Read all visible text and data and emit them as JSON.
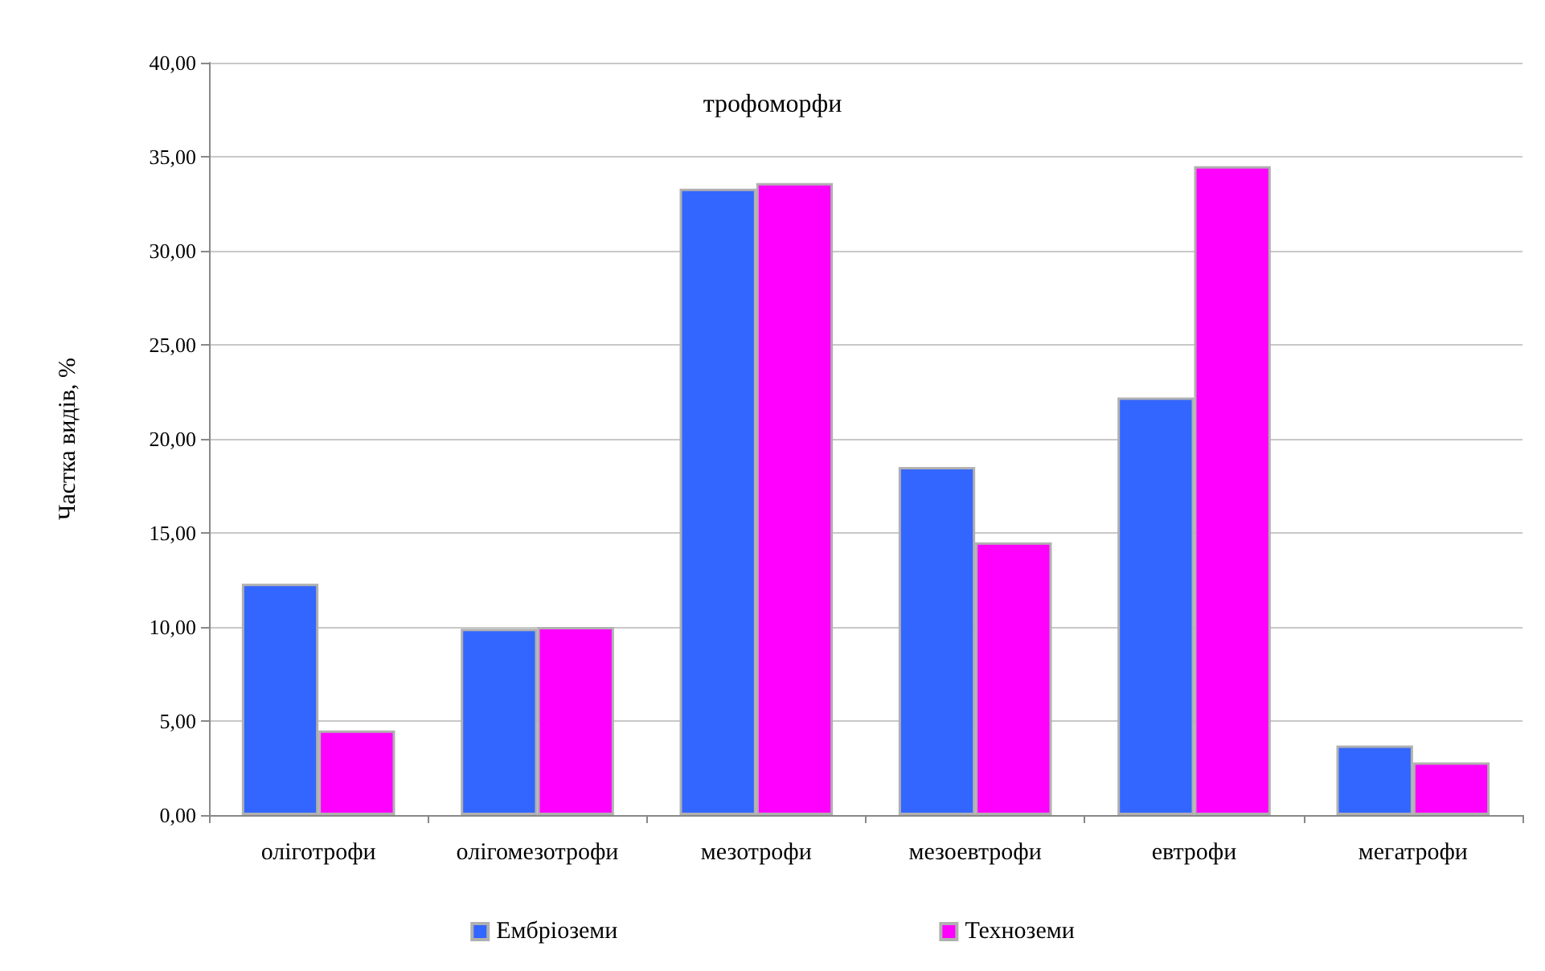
{
  "chart_data": {
    "type": "bar",
    "title": "трофоморфи",
    "ylabel": "Частка видів, %",
    "categories": [
      "оліготрофи",
      "олігомезотрофи",
      "мезотрофи",
      "мезоевтрофи",
      "евтрофи",
      "мегатрофи"
    ],
    "series": [
      {
        "name": "Ембріоземи",
        "color": "#3366ff",
        "values": [
          12.3,
          9.9,
          33.3,
          18.5,
          22.2,
          3.7
        ]
      },
      {
        "name": "Техноземи",
        "color": "#ff00ff",
        "values": [
          4.5,
          10.0,
          33.6,
          14.5,
          34.5,
          2.8
        ]
      }
    ],
    "ylim": [
      0,
      40
    ],
    "yticks": [
      {
        "value": 0,
        "label": "0,00"
      },
      {
        "value": 5,
        "label": "5,00"
      },
      {
        "value": 10,
        "label": "10,00"
      },
      {
        "value": 15,
        "label": "15,00"
      },
      {
        "value": 20,
        "label": "20,00"
      },
      {
        "value": 25,
        "label": "25,00"
      },
      {
        "value": 30,
        "label": "30,00"
      },
      {
        "value": 35,
        "label": "35,00"
      },
      {
        "value": 40,
        "label": "40,00"
      }
    ],
    "grid": "y",
    "legend": "bottom"
  }
}
